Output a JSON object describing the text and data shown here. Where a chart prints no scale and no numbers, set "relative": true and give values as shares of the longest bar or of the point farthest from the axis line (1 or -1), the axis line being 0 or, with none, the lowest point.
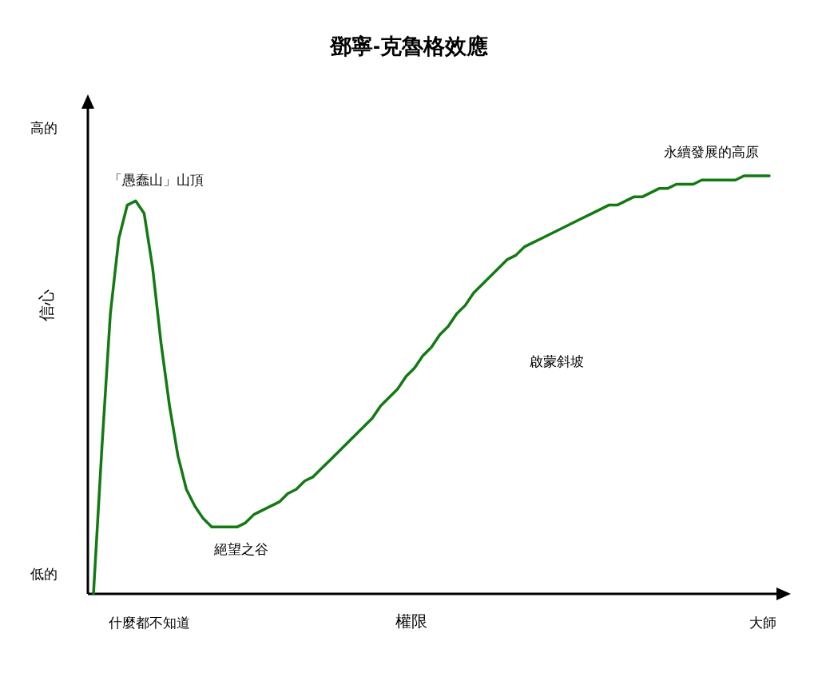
{
  "chart_data": {
    "type": "line",
    "title": "鄧寧-克魯格效應",
    "xlabel": "權限",
    "ylabel": "信心",
    "relative": true,
    "color": "#137a13",
    "categories": [
      null,
      null,
      null,
      null,
      null,
      null,
      null,
      null,
      null,
      null,
      null,
      null,
      null,
      null,
      null,
      null,
      null,
      null,
      null,
      null,
      null,
      null,
      null,
      null,
      null,
      null,
      null,
      null,
      null,
      null,
      null,
      null,
      null,
      null,
      null,
      null,
      null,
      null,
      null,
      null,
      null,
      null,
      null,
      null,
      null,
      null,
      null,
      null,
      null,
      null,
      null,
      null,
      null,
      null,
      null,
      null,
      null,
      null,
      null,
      null,
      null,
      null,
      null,
      null,
      null,
      null,
      null,
      null,
      null,
      null,
      null,
      null,
      null,
      null,
      null,
      null,
      null,
      null,
      null,
      null,
      null
    ],
    "values": [
      0,
      0.35,
      0.67,
      0.85,
      0.93,
      0.94,
      0.91,
      0.78,
      0.6,
      0.45,
      0.33,
      0.25,
      0.21,
      0.18,
      0.16,
      0.16,
      0.16,
      0.16,
      0.17,
      0.19,
      0.2,
      0.21,
      0.22,
      0.24,
      0.25,
      0.27,
      0.28,
      0.3,
      0.32,
      0.34,
      0.36,
      0.38,
      0.4,
      0.42,
      0.45,
      0.47,
      0.49,
      0.52,
      0.54,
      0.57,
      0.59,
      0.62,
      0.64,
      0.67,
      0.69,
      0.72,
      0.74,
      0.76,
      0.78,
      0.8,
      0.81,
      0.83,
      0.84,
      0.85,
      0.86,
      0.87,
      0.88,
      0.89,
      0.9,
      0.91,
      0.92,
      0.93,
      0.93,
      0.94,
      0.95,
      0.95,
      0.96,
      0.97,
      0.97,
      0.98,
      0.98,
      0.98,
      0.99,
      0.99,
      0.99,
      0.99,
      0.99,
      1.0,
      1.0,
      1.0,
      1
    ],
    "annotations": [
      "「愚蠢山」山頂",
      "絕望之谷",
      "啟蒙斜坡",
      "永續發展的高原",
      "什麼都不知道",
      "大師",
      "高的",
      "低的"
    ]
  }
}
